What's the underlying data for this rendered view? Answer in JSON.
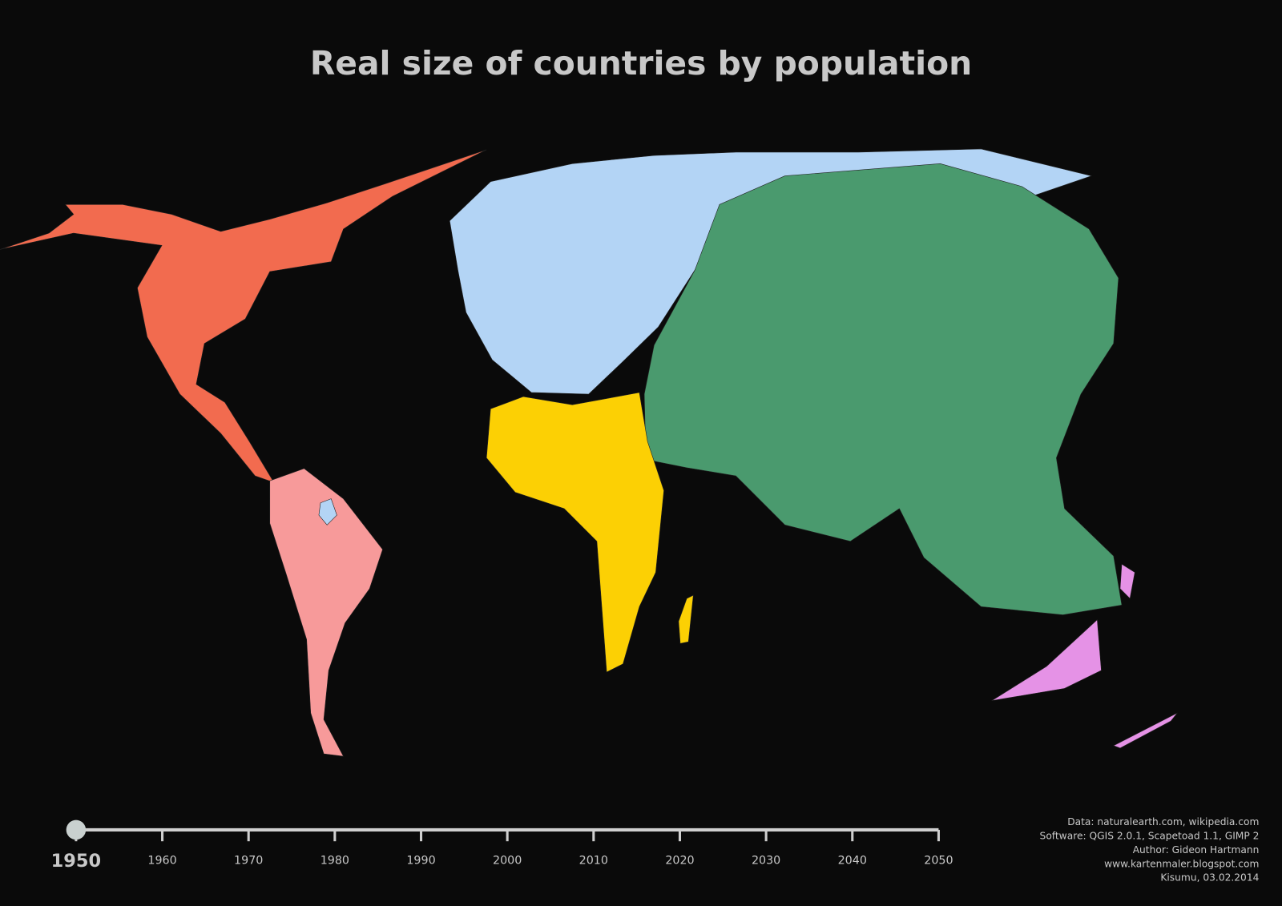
{
  "title": "Real size of countries by population",
  "timeline": {
    "range": [
      1950,
      2050
    ],
    "current": 1950,
    "ticks": [
      1960,
      1970,
      1980,
      1990,
      2000,
      2010,
      2020,
      2030,
      2040,
      2050
    ]
  },
  "credits": [
    "Data: naturalearth.com, wikipedia.com",
    "Software: QGIS 2.0.1, Scapetoad 1.1, GIMP 2",
    "Author: Gideon Hartmann",
    "www.kartenmaler.blogspot.com",
    "Kisumu, 03.02.2014"
  ]
}
